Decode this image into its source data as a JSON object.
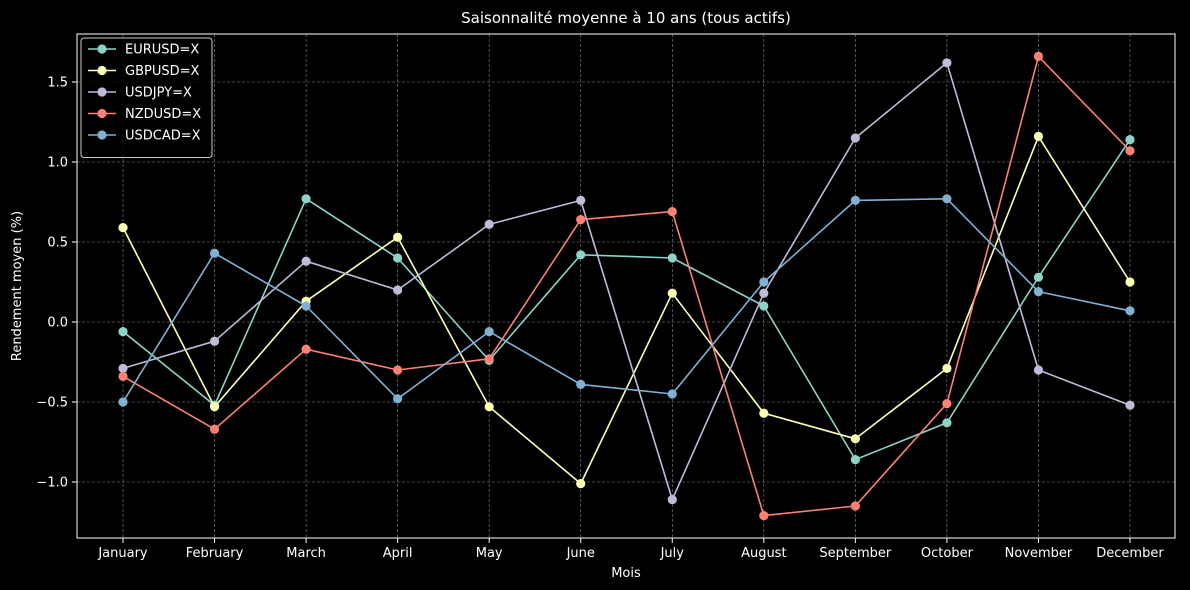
{
  "chart_data": {
    "type": "line",
    "title": "Saisonnalité moyenne à 10 ans (tous actifs)",
    "xlabel": "Mois",
    "ylabel": "Rendement moyen (%)",
    "categories": [
      "January",
      "February",
      "March",
      "April",
      "May",
      "June",
      "July",
      "August",
      "September",
      "October",
      "November",
      "December"
    ],
    "ylim": [
      -1.35,
      1.8
    ],
    "yticks": [
      -1.0,
      -0.5,
      0.0,
      0.5,
      1.0,
      1.5
    ],
    "ytick_labels": [
      "−1.0",
      "−0.5",
      "0.0",
      "0.5",
      "1.0",
      "1.5"
    ],
    "grid": true,
    "legend_position": "upper-left",
    "series": [
      {
        "name": "EURUSD=X",
        "color": "#8dd3c7",
        "values": [
          -0.06,
          -0.52,
          0.77,
          0.4,
          -0.24,
          0.42,
          0.4,
          0.1,
          -0.86,
          -0.63,
          0.28,
          1.14
        ]
      },
      {
        "name": "GBPUSD=X",
        "color": "#feffb3",
        "values": [
          0.59,
          -0.53,
          0.13,
          0.53,
          -0.53,
          -1.01,
          0.18,
          -0.57,
          -0.73,
          -0.29,
          1.16,
          0.25
        ]
      },
      {
        "name": "USDJPY=X",
        "color": "#bfbbd9",
        "values": [
          -0.29,
          -0.12,
          0.38,
          0.2,
          0.61,
          0.76,
          -1.11,
          0.18,
          1.15,
          1.62,
          -0.3,
          -0.52
        ]
      },
      {
        "name": "NZDUSD=X",
        "color": "#fa8174",
        "values": [
          -0.34,
          -0.67,
          -0.17,
          -0.3,
          -0.23,
          0.64,
          0.69,
          -1.21,
          -1.15,
          -0.51,
          1.66,
          1.07
        ]
      },
      {
        "name": "USDCAD=X",
        "color": "#81b1d2",
        "values": [
          -0.5,
          0.43,
          0.1,
          -0.48,
          -0.06,
          -0.39,
          -0.45,
          0.25,
          0.76,
          0.77,
          0.19,
          0.07
        ]
      }
    ]
  }
}
